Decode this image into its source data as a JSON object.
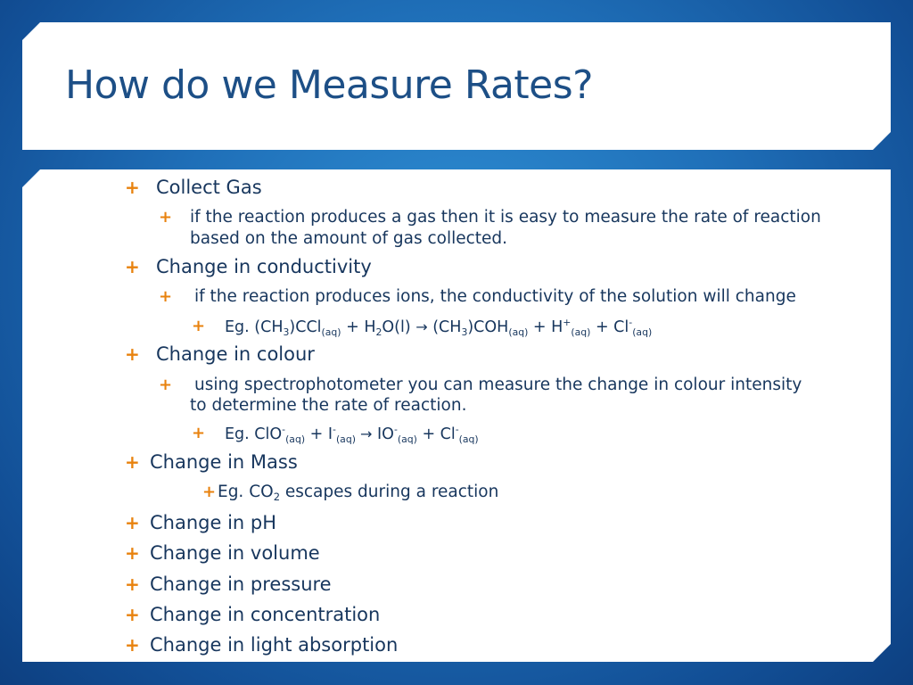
{
  "slide": {
    "title": "How do we Measure Rates?"
  },
  "bullets": {
    "collect_gas": "Collect Gas",
    "collect_gas_detail_1": "if the reaction produces a gas then it is easy to measure the rate of reaction",
    "collect_gas_detail_2": "based on the amount of gas collected.",
    "conductivity": "Change in conductivity",
    "conductivity_detail": "if the reaction produces ions, the conductivity of the solution will change",
    "colour": "Change in colour",
    "colour_detail_1": "using spectrophotometer you can measure the change in colour intensity",
    "colour_detail_2": "to determine the rate of reaction.",
    "mass": "Change in Mass",
    "ph": "Change in pH",
    "volume": "Change in volume",
    "pressure": "Change in pressure",
    "concentration": "Change in concentration",
    "light_absorption": "Change in light absorption"
  },
  "equations": {
    "conductivity": {
      "eg": "Eg. (CH",
      "n3a": "3",
      "a1": ")CCl",
      "aq1": "(aq)",
      "plus1": " + H",
      "n2": "2",
      "a2": "O(l) ",
      "arrow": "→",
      "a3": " (CH",
      "n3b": "3",
      "a4": ")COH",
      "aq2": "(aq)",
      "plus2": " + H",
      "sup_plus": "+",
      "aq3": "(aq)",
      "plus3": " + Cl",
      "sup_minus": "-",
      "aq4": "(aq)"
    },
    "colour": {
      "eg": "Eg. ClO",
      "sup1": "-",
      "aq1": "(aq)",
      "plus1": " + I",
      "sup2": "-",
      "aq2": "(aq)",
      "arrow": " →",
      "a1": " IO",
      "sup3": "-",
      "aq3": "(aq)",
      "plus2": " + Cl",
      "sup4": "-",
      "aq4": "(aq)"
    },
    "mass": {
      "eg": "Eg. CO",
      "n2": "2",
      "rest": " escapes during a reaction"
    }
  },
  "bullet_glyph": "+",
  "colors": {
    "title": "#1d4f86",
    "text": "#17365d",
    "bullet": "#e8820e",
    "background": "#1f6fb8"
  }
}
